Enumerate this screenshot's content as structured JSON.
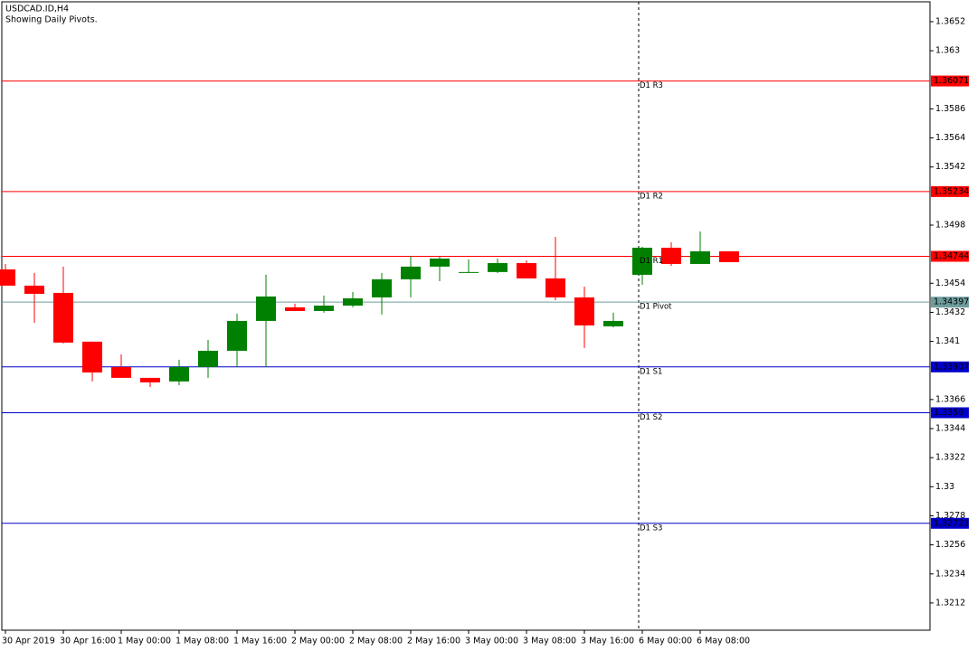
{
  "chart_data": {
    "type": "candlestick",
    "title": "USDCAD.ID,H4",
    "subtitle": "Showing Daily Pivots.",
    "categories": [
      "30 Apr 2019",
      null,
      "30 Apr 16:00",
      null,
      "1 May 00:00",
      null,
      "1 May 08:00",
      null,
      "1 May 16:00",
      null,
      "2 May 00:00",
      null,
      "2 May 08:00",
      null,
      "2 May 16:00",
      null,
      "3 May 00:00",
      null,
      "3 May 08:00",
      null,
      "3 May 16:00",
      null,
      "6 May 00:00",
      null,
      "6 May 08:00",
      null
    ],
    "open": [
      1.34645,
      1.34522,
      1.34467,
      1.34098,
      1.33906,
      1.33824,
      1.33797,
      1.33906,
      1.34029,
      1.34255,
      1.34358,
      1.3433,
      1.34371,
      1.34433,
      1.3457,
      1.34666,
      1.34618,
      1.34625,
      1.34693,
      1.34577,
      1.34433,
      1.34214,
      1.34604,
      1.34809,
      1.34686,
      1.34782
    ],
    "high": [
      1.34686,
      1.34618,
      1.34666,
      1.34098,
      1.34002,
      1.33824,
      1.33961,
      1.34111,
      1.3431,
      1.34604,
      1.34385,
      1.34447,
      1.34474,
      1.34618,
      1.34748,
      1.34741,
      1.3472,
      1.34727,
      1.34713,
      1.34891,
      1.34515,
      1.34317,
      1.34816,
      1.3485,
      1.34932,
      1.34782
    ],
    "low": [
      1.34522,
      1.34241,
      1.34084,
      1.33797,
      1.33824,
      1.33755,
      1.33769,
      1.33824,
      1.33906,
      1.33906,
      1.3433,
      1.34317,
      1.34358,
      1.34303,
      1.34433,
      1.34556,
      1.34618,
      1.34618,
      1.34577,
      1.34412,
      1.3405,
      1.34207,
      1.34529,
      1.34672,
      1.34686,
      1.34727
    ],
    "close": [
      1.34522,
      1.3446,
      1.34091,
      1.33865,
      1.33824,
      1.3379,
      1.33906,
      1.34029,
      1.34255,
      1.3444,
      1.3433,
      1.34371,
      1.34426,
      1.3457,
      1.34666,
      1.34727,
      1.34625,
      1.34693,
      1.34577,
      1.34433,
      1.34221,
      1.34255,
      1.34809,
      1.34686,
      1.34782,
      1.347
    ],
    "up_color": "#008000",
    "down_color": "#ff0000",
    "ylim": [
      1.31914,
      1.36684
    ],
    "yticks": [
      1.3652,
      1.363,
      1.3586,
      1.3564,
      1.3542,
      1.3498,
      1.3454,
      1.3432,
      1.341,
      1.3366,
      1.3344,
      1.3322,
      1.33,
      1.3278,
      1.3256,
      1.3234,
      1.3212
    ],
    "pivots": [
      {
        "name": "D1 R3",
        "value": 1.36071,
        "color": "#ff0000"
      },
      {
        "name": "D1 R2",
        "value": 1.35234,
        "color": "#ff0000"
      },
      {
        "name": "D1 R1",
        "value": 1.34744,
        "color": "#ff0000"
      },
      {
        "name": "D1 Pivot",
        "value": 1.34397,
        "color": "#6f9c9c"
      },
      {
        "name": "D1 S1",
        "value": 1.33907,
        "color": "#0000cc"
      },
      {
        "name": "D1 S2",
        "value": 1.3356,
        "color": "#0000cc"
      },
      {
        "name": "D1 S3",
        "value": 1.32723,
        "color": "#0000cc"
      }
    ]
  }
}
